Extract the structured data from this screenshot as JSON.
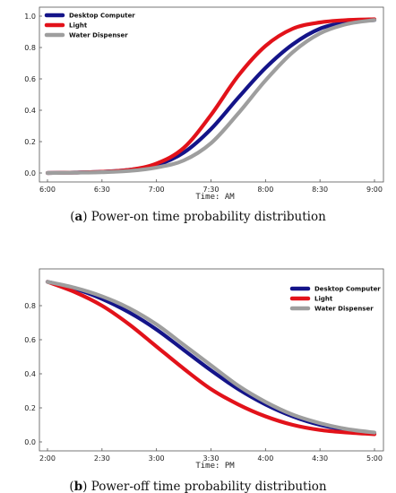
{
  "chart_data": [
    {
      "type": "line",
      "caption_letter": "a",
      "caption_text": "Power-on time probability distribution",
      "xlabel": "Time: AM",
      "ylabel": "",
      "x_ticks": [
        "6:00",
        "6:30",
        "7:00",
        "7:30",
        "8:00",
        "8:30",
        "9:00"
      ],
      "xlim_hours": [
        6.0,
        9.0
      ],
      "y_ticks": [
        "0.0",
        "0.2",
        "0.4",
        "0.6",
        "0.8",
        "1.0"
      ],
      "ylim": [
        0,
        1
      ],
      "legend_position": "top-left",
      "x_hours": [
        6.0,
        6.25,
        6.5,
        6.75,
        7.0,
        7.25,
        7.5,
        7.75,
        8.0,
        8.25,
        8.5,
        8.75,
        9.0
      ],
      "series": [
        {
          "name": "Desktop Computer",
          "color": "#141489",
          "values": [
            0.0,
            0.003,
            0.008,
            0.02,
            0.05,
            0.13,
            0.28,
            0.48,
            0.67,
            0.82,
            0.92,
            0.96,
            0.975
          ]
        },
        {
          "name": "Light",
          "color": "#e2121a",
          "values": [
            0.0,
            0.003,
            0.008,
            0.02,
            0.06,
            0.16,
            0.37,
            0.62,
            0.81,
            0.92,
            0.96,
            0.975,
            0.98
          ]
        },
        {
          "name": "Water Dispenser",
          "color": "#9e9e9e",
          "values": [
            0.0,
            0.002,
            0.005,
            0.013,
            0.035,
            0.08,
            0.19,
            0.38,
            0.59,
            0.77,
            0.89,
            0.95,
            0.975
          ]
        }
      ]
    },
    {
      "type": "line",
      "caption_letter": "b",
      "caption_text": "Power-off time probability distribution",
      "xlabel": "Time: PM",
      "ylabel": "",
      "x_ticks": [
        "2:00",
        "2:30",
        "3:00",
        "3:30",
        "4:00",
        "4:30",
        "5:00"
      ],
      "xlim_hours": [
        14.0,
        17.0
      ],
      "y_ticks": [
        "0.0",
        "0.2",
        "0.4",
        "0.6",
        "0.8"
      ],
      "ylim": [
        0,
        0.97
      ],
      "legend_position": "top-right",
      "x_hours": [
        14.0,
        14.25,
        14.5,
        14.75,
        15.0,
        15.25,
        15.5,
        15.75,
        16.0,
        16.25,
        16.5,
        16.75,
        17.0
      ],
      "series": [
        {
          "name": "Desktop Computer",
          "color": "#141489",
          "values": [
            0.94,
            0.9,
            0.84,
            0.76,
            0.66,
            0.54,
            0.42,
            0.31,
            0.22,
            0.15,
            0.1,
            0.07,
            0.05
          ]
        },
        {
          "name": "Light",
          "color": "#e2121a",
          "values": [
            0.94,
            0.88,
            0.8,
            0.69,
            0.56,
            0.43,
            0.31,
            0.22,
            0.15,
            0.1,
            0.07,
            0.055,
            0.045
          ]
        },
        {
          "name": "Water Dispenser",
          "color": "#9e9e9e",
          "values": [
            0.94,
            0.905,
            0.855,
            0.785,
            0.69,
            0.57,
            0.45,
            0.33,
            0.235,
            0.16,
            0.11,
            0.075,
            0.055
          ]
        }
      ]
    }
  ]
}
